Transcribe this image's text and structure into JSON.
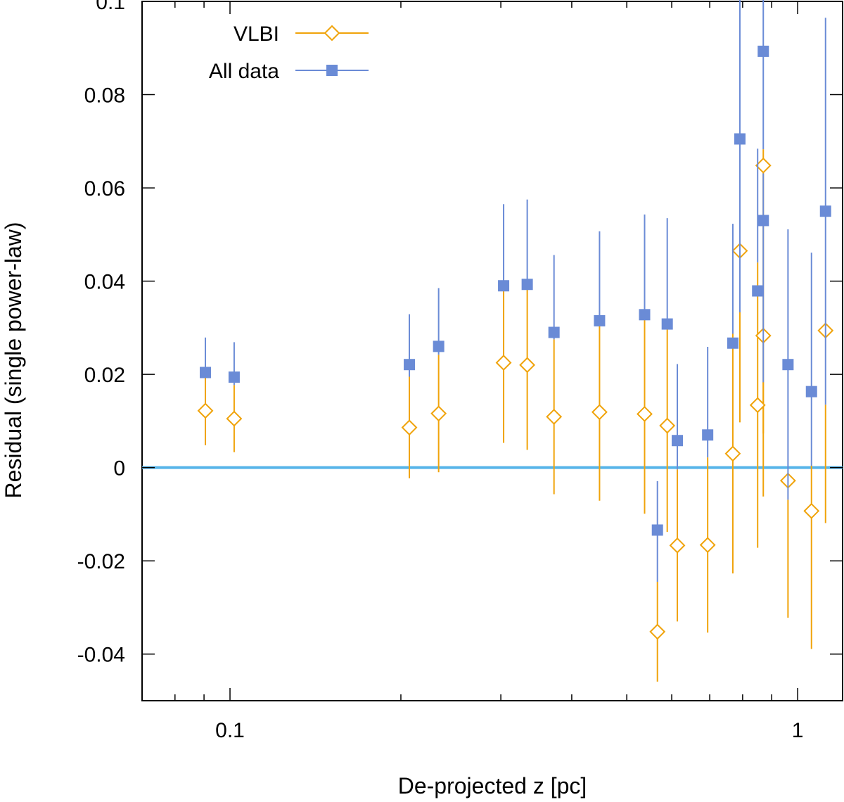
{
  "chart_data": {
    "type": "scatter",
    "title": "",
    "xlabel": "De-projected z [pc]",
    "ylabel": "Residual (single power-law)",
    "xscale": "log",
    "xlim": [
      0.07,
      1.2
    ],
    "ylim": [
      -0.05,
      0.1
    ],
    "xticks": [
      {
        "value": 0.1,
        "label": "0.1"
      },
      {
        "value": 1,
        "label": "1"
      }
    ],
    "yticks": [
      {
        "value": -0.04,
        "label": "-0.04"
      },
      {
        "value": -0.02,
        "label": "-0.02"
      },
      {
        "value": 0,
        "label": "0"
      },
      {
        "value": 0.02,
        "label": "0.02"
      },
      {
        "value": 0.04,
        "label": "0.04"
      },
      {
        "value": 0.06,
        "label": "0.06"
      },
      {
        "value": 0.08,
        "label": "0.08"
      },
      {
        "value": 0.1,
        "label": "0.1"
      }
    ],
    "reference_line": {
      "y": 0,
      "color": "#56b4e9"
    },
    "grid": false,
    "legend_position": "top-left",
    "series": [
      {
        "name": "VLBI",
        "marker": "open-diamond",
        "color": "#f0a30a",
        "points": [
          {
            "x": 0.0905,
            "y": 0.0122,
            "lo": 0.0048,
            "hi": 0.0196
          },
          {
            "x": 0.1017,
            "y": 0.0105,
            "lo": 0.0033,
            "hi": 0.0177
          },
          {
            "x": 0.207,
            "y": 0.0086,
            "lo": -0.0023,
            "hi": 0.0195
          },
          {
            "x": 0.2331,
            "y": 0.0116,
            "lo": -0.001,
            "hi": 0.0242
          },
          {
            "x": 0.3034,
            "y": 0.0225,
            "lo": 0.0053,
            "hi": 0.0397
          },
          {
            "x": 0.3339,
            "y": 0.022,
            "lo": 0.0038,
            "hi": 0.0402
          },
          {
            "x": 0.3722,
            "y": 0.0109,
            "lo": -0.0057,
            "hi": 0.0275
          },
          {
            "x": 0.4477,
            "y": 0.0119,
            "lo": -0.0071,
            "hi": 0.0309
          },
          {
            "x": 0.5375,
            "y": 0.0115,
            "lo": -0.0099,
            "hi": 0.0329
          },
          {
            "x": 0.5662,
            "y": -0.0352,
            "lo": -0.0459,
            "hi": -0.0245
          },
          {
            "x": 0.5892,
            "y": 0.009,
            "lo": -0.0138,
            "hi": 0.0318
          },
          {
            "x": 0.6138,
            "y": -0.0167,
            "lo": -0.033,
            "hi": -0.0004
          },
          {
            "x": 0.6942,
            "y": -0.0166,
            "lo": -0.0354,
            "hi": 0.0022
          },
          {
            "x": 0.7688,
            "y": 0.003,
            "lo": -0.0227,
            "hi": 0.0287
          },
          {
            "x": 0.7911,
            "y": 0.0465,
            "lo": 0.0097,
            "hi": 0.0333
          },
          {
            "x": 0.8502,
            "y": 0.0134,
            "lo": -0.0172,
            "hi": 0.044
          },
          {
            "x": 0.8699,
            "y": 0.0648,
            "lo": 0.0073,
            "hi": 0.0683
          },
          {
            "x": 0.8699,
            "y": 0.0283,
            "lo": -0.0062,
            "hi": 0.0183
          },
          {
            "x": 0.9616,
            "y": -0.0028,
            "lo": -0.0322,
            "hi": -0.0069
          },
          {
            "x": 1.0577,
            "y": -0.0093,
            "lo": -0.0389,
            "hi": 0.0004
          },
          {
            "x": 1.1198,
            "y": 0.0294,
            "lo": -0.0119,
            "hi": 0.0135
          }
        ]
      },
      {
        "name": "All data",
        "marker": "filled-square",
        "color": "#6a8bd6",
        "points": [
          {
            "x": 0.0905,
            "y": 0.0204,
            "lo": 0.0196,
            "hi": 0.0279
          },
          {
            "x": 0.1017,
            "y": 0.0194,
            "lo": 0.0177,
            "hi": 0.0269
          },
          {
            "x": 0.207,
            "y": 0.0221,
            "lo": 0.0195,
            "hi": 0.0329
          },
          {
            "x": 0.2331,
            "y": 0.026,
            "lo": 0.0242,
            "hi": 0.0385
          },
          {
            "x": 0.3034,
            "y": 0.039,
            "lo": 0.0397,
            "hi": 0.0565
          },
          {
            "x": 0.3339,
            "y": 0.0393,
            "lo": 0.0402,
            "hi": 0.0575
          },
          {
            "x": 0.3722,
            "y": 0.029,
            "lo": 0.0275,
            "hi": 0.0456
          },
          {
            "x": 0.4477,
            "y": 0.0315,
            "lo": 0.0309,
            "hi": 0.0507
          },
          {
            "x": 0.5375,
            "y": 0.0328,
            "lo": 0.0329,
            "hi": 0.0543
          },
          {
            "x": 0.5662,
            "y": -0.0134,
            "lo": -0.0245,
            "hi": -0.0029
          },
          {
            "x": 0.5892,
            "y": 0.0308,
            "lo": 0.0318,
            "hi": 0.0535
          },
          {
            "x": 0.6138,
            "y": 0.0058,
            "lo": -0.0004,
            "hi": 0.0222
          },
          {
            "x": 0.6942,
            "y": 0.007,
            "lo": 0.0022,
            "hi": 0.0259
          },
          {
            "x": 0.7688,
            "y": 0.0267,
            "lo": 0.0287,
            "hi": 0.0523
          },
          {
            "x": 0.7911,
            "y": 0.0705,
            "lo": 0.0333,
            "hi": 0.1079
          },
          {
            "x": 0.8502,
            "y": 0.0379,
            "lo": 0.044,
            "hi": 0.0684
          },
          {
            "x": 0.8699,
            "y": 0.0893,
            "lo": 0.0683,
            "hi": 0.11
          },
          {
            "x": 0.8699,
            "y": 0.053,
            "lo": 0.0183,
            "hi": 0.0631
          },
          {
            "x": 0.9616,
            "y": 0.0221,
            "lo": -0.0069,
            "hi": 0.0511
          },
          {
            "x": 1.0577,
            "y": 0.0163,
            "lo": 0.0004,
            "hi": 0.0461
          },
          {
            "x": 1.1198,
            "y": 0.055,
            "lo": 0.0135,
            "hi": 0.0965
          }
        ]
      }
    ]
  }
}
